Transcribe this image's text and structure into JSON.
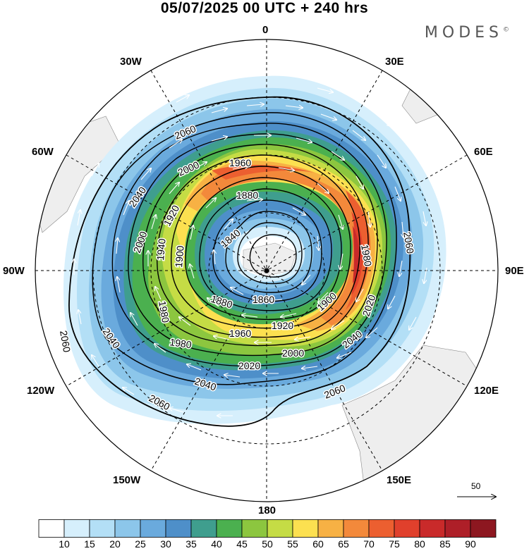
{
  "title": "05/07/2025  00 UTC  + 240 hrs",
  "brand": "MODES",
  "brand_mark": "©",
  "lon_labels": {
    "l0": "0",
    "l30w": "30W",
    "l30e": "30E",
    "l60w": "60W",
    "l60e": "60E",
    "l90w": "90W",
    "l90e": "90E",
    "l120w": "120W",
    "l120e": "120E",
    "l150w": "150W",
    "l150e": "150E",
    "l180": "180"
  },
  "contour_labels": {
    "c2060a": "2060",
    "c2060b": "2060",
    "c2060c": "2060",
    "c2060d": "2060",
    "c2060e": "2060",
    "c2040a": "2040",
    "c2040b": "2040",
    "c2040c": "2040",
    "c2040d": "2040",
    "c2020a": "2020",
    "c2020b": "2020",
    "c2000a": "2000",
    "c2000b": "2000",
    "c2000c": "2000",
    "c1980a": "1980",
    "c1980b": "1980",
    "c1980c": "1980",
    "c1960a": "1960",
    "c1960b": "1960",
    "c1940": "1940",
    "c1920a": "1920",
    "c1920b": "1920",
    "c1900a": "1900",
    "c1900b": "1900",
    "c1880a": "1880",
    "c1880b": "1880",
    "c1860": "1860",
    "c1840": "1840"
  },
  "reference_vector": "50",
  "colorbar": {
    "colors": [
      "#ffffff",
      "#d6effc",
      "#b3dff6",
      "#8cc6ea",
      "#6aaadd",
      "#4e8fc9",
      "#3f9e8e",
      "#4bb04f",
      "#8cc63f",
      "#c5dc45",
      "#fce050",
      "#f7b144",
      "#f3893b",
      "#ec5f30",
      "#e0402c",
      "#c92a2a",
      "#ae1f28",
      "#8d1720"
    ],
    "labels": [
      "10",
      "15",
      "20",
      "25",
      "30",
      "35",
      "40",
      "45",
      "50",
      "55",
      "60",
      "65",
      "70",
      "75",
      "80",
      "85",
      "90"
    ]
  },
  "colors": {
    "land": "#eeeeee",
    "contour": "#000000",
    "arrow": "#ffffff"
  }
}
